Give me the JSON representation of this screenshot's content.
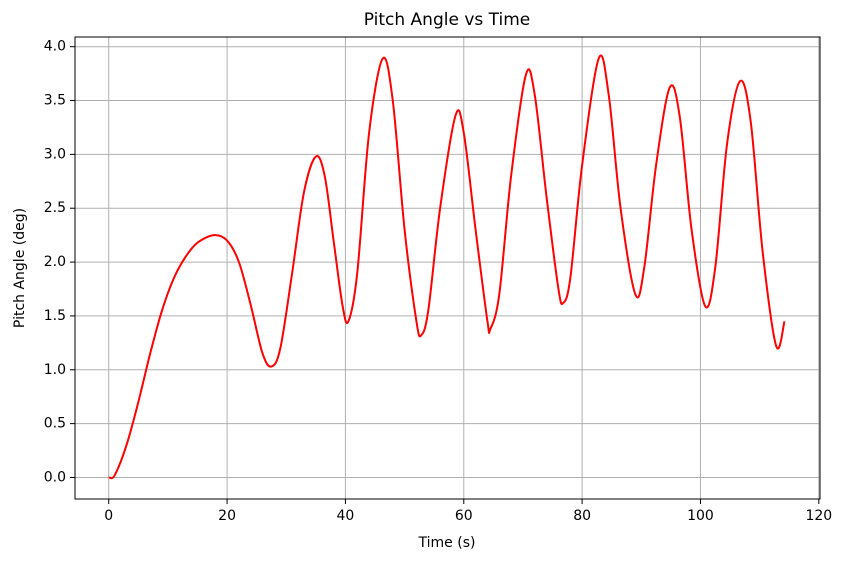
{
  "chart_data": {
    "type": "line",
    "title": "Pitch Angle vs Time",
    "x_label": "Time (s)",
    "y_label": "Pitch Angle (deg)",
    "x": [
      0,
      1,
      3,
      5,
      7,
      9,
      11,
      13,
      15,
      17.8,
      20,
      22,
      24,
      26,
      27.5,
      29,
      31,
      33,
      35,
      36.5,
      38,
      39.5,
      40.5,
      42,
      44,
      46.3,
      48,
      50,
      52,
      52.8,
      54,
      56,
      58.6,
      60,
      62,
      64,
      64.5,
      66,
      68,
      70.5,
      72,
      74,
      76,
      76.8,
      78,
      80,
      82.8,
      84.5,
      86.5,
      89,
      90.5,
      92.5,
      94.8,
      96.5,
      98.5,
      100.8,
      102.5,
      104.5,
      106.7,
      108.5,
      110.5,
      112.8,
      114.2
    ],
    "series": [
      {
        "name": "Pitch Angle",
        "color": "#ff0000",
        "values": [
          0,
          0.02,
          0.3,
          0.7,
          1.15,
          1.55,
          1.85,
          2.05,
          2.18,
          2.25,
          2.2,
          2.0,
          1.6,
          1.15,
          1.03,
          1.2,
          1.9,
          2.65,
          2.98,
          2.8,
          2.2,
          1.6,
          1.45,
          1.9,
          3.2,
          3.89,
          3.5,
          2.3,
          1.45,
          1.32,
          1.55,
          2.5,
          3.36,
          3.2,
          2.3,
          1.45,
          1.38,
          1.7,
          2.8,
          3.74,
          3.55,
          2.6,
          1.75,
          1.62,
          1.85,
          2.9,
          3.89,
          3.55,
          2.5,
          1.7,
          1.95,
          2.9,
          3.62,
          3.35,
          2.3,
          1.59,
          1.95,
          3.1,
          3.68,
          3.3,
          2.1,
          1.22,
          1.45
        ]
      }
    ],
    "xlim": [
      -5.7,
      120.2
    ],
    "ylim": [
      -0.2,
      4.09
    ],
    "xticks": [
      0,
      20,
      40,
      60,
      80,
      100,
      120
    ],
    "yticks": [
      {
        "value": 0,
        "label": "0.0"
      },
      0.5,
      {
        "value": 1,
        "label": "1.0"
      },
      1.5,
      {
        "value": 2,
        "label": "2.0"
      },
      2.5,
      {
        "value": 3,
        "label": "3.0"
      },
      3.5,
      {
        "value": 4,
        "label": "4.0"
      }
    ],
    "grid": true
  }
}
